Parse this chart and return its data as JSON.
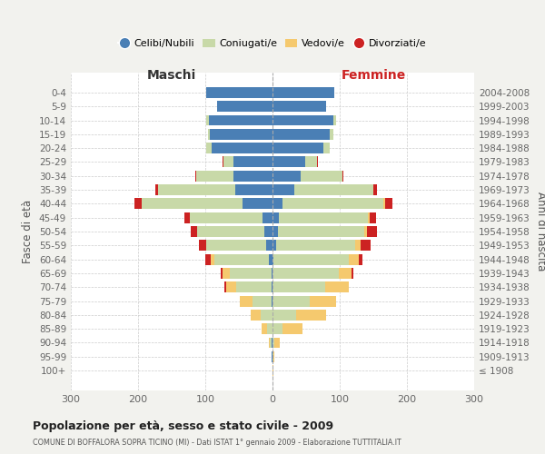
{
  "age_groups": [
    "100+",
    "95-99",
    "90-94",
    "85-89",
    "80-84",
    "75-79",
    "70-74",
    "65-69",
    "60-64",
    "55-59",
    "50-54",
    "45-49",
    "40-44",
    "35-39",
    "30-34",
    "25-29",
    "20-24",
    "15-19",
    "10-14",
    "5-9",
    "0-4"
  ],
  "birth_years": [
    "≤ 1908",
    "1909-1913",
    "1914-1918",
    "1919-1923",
    "1924-1928",
    "1929-1933",
    "1934-1938",
    "1939-1943",
    "1944-1948",
    "1949-1953",
    "1954-1958",
    "1959-1963",
    "1964-1968",
    "1969-1973",
    "1974-1978",
    "1979-1983",
    "1984-1988",
    "1989-1993",
    "1994-1998",
    "1999-2003",
    "2004-2008"
  ],
  "colors": {
    "celibi": "#4a7fb5",
    "coniugati": "#c8d9a8",
    "vedovi": "#f5c96e",
    "divorziati": "#cc2222"
  },
  "maschi": {
    "celibi": [
      0,
      1,
      1,
      0,
      0,
      2,
      2,
      2,
      5,
      10,
      12,
      15,
      45,
      55,
      58,
      58,
      90,
      93,
      95,
      83,
      98
    ],
    "coniugati": [
      0,
      0,
      3,
      8,
      18,
      28,
      52,
      62,
      82,
      88,
      100,
      108,
      150,
      115,
      55,
      15,
      8,
      3,
      3,
      0,
      0
    ],
    "vedovi": [
      0,
      0,
      2,
      8,
      15,
      18,
      15,
      10,
      5,
      0,
      0,
      0,
      0,
      0,
      0,
      0,
      0,
      0,
      0,
      0,
      0
    ],
    "divorziati": [
      0,
      0,
      0,
      0,
      0,
      0,
      3,
      3,
      8,
      12,
      10,
      8,
      10,
      5,
      2,
      1,
      0,
      0,
      0,
      0,
      0
    ]
  },
  "femmine": {
    "celibi": [
      0,
      0,
      0,
      0,
      0,
      0,
      0,
      0,
      2,
      5,
      8,
      10,
      15,
      32,
      42,
      48,
      75,
      85,
      90,
      80,
      92
    ],
    "coniugati": [
      0,
      1,
      3,
      15,
      35,
      55,
      78,
      98,
      112,
      118,
      128,
      132,
      150,
      118,
      62,
      18,
      10,
      5,
      5,
      0,
      0
    ],
    "vedovi": [
      1,
      2,
      8,
      30,
      45,
      40,
      35,
      20,
      15,
      8,
      5,
      2,
      2,
      0,
      0,
      0,
      0,
      0,
      0,
      0,
      0
    ],
    "divorziati": [
      0,
      0,
      0,
      0,
      0,
      0,
      0,
      2,
      5,
      15,
      15,
      10,
      12,
      5,
      2,
      1,
      0,
      0,
      0,
      0,
      0
    ]
  },
  "xlim": 300,
  "title": "Popolazione per età, sesso e stato civile - 2009",
  "subtitle": "COMUNE DI BOFFALORA SOPRA TICINO (MI) - Dati ISTAT 1° gennaio 2009 - Elaborazione TUTTITALIA.IT",
  "ylabel_left": "Fasce di età",
  "ylabel_right": "Anni di nascita",
  "xlabel_left": "Maschi",
  "xlabel_right": "Femmine",
  "legend_labels": [
    "Celibi/Nubili",
    "Coniugati/e",
    "Vedovi/e",
    "Divorziati/e"
  ],
  "bg_color": "#f2f2ee",
  "plot_bg": "#ffffff"
}
